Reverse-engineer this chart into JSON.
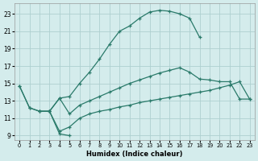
{
  "xlabel": "Humidex (Indice chaleur)",
  "bg_color": "#d4ecec",
  "grid_color": "#aed0d0",
  "line_color": "#2a7a6a",
  "xlim": [
    -0.5,
    23.5
  ],
  "ylim": [
    8.5,
    24.2
  ],
  "xticks": [
    0,
    1,
    2,
    3,
    4,
    5,
    6,
    7,
    8,
    9,
    10,
    11,
    12,
    13,
    14,
    15,
    16,
    17,
    18,
    19,
    20,
    21,
    22,
    23
  ],
  "yticks": [
    9,
    11,
    13,
    15,
    17,
    19,
    21,
    23
  ],
  "line1_x": [
    0,
    1,
    2,
    3,
    4,
    5,
    6,
    7,
    8,
    9,
    10,
    11,
    12,
    13,
    14,
    15,
    16,
    17,
    18
  ],
  "line1_y": [
    14.7,
    12.2,
    11.8,
    11.8,
    13.3,
    13.5,
    15.0,
    16.3,
    17.8,
    19.5,
    21.0,
    21.6,
    22.5,
    23.2,
    23.4,
    23.3,
    23.0,
    22.5,
    20.3
  ],
  "line2_x": [
    3,
    4,
    5
  ],
  "line2_y": [
    11.8,
    9.2,
    9.0
  ],
  "line3_x": [
    0,
    1,
    2,
    3,
    4,
    5,
    6,
    7,
    8,
    9,
    10,
    11,
    12,
    13,
    14,
    15,
    16,
    17,
    18,
    19,
    20,
    21,
    22,
    23
  ],
  "line3_y": [
    14.7,
    12.2,
    11.8,
    11.8,
    13.3,
    11.5,
    12.5,
    13.0,
    13.5,
    14.0,
    14.5,
    15.0,
    15.4,
    15.8,
    16.2,
    16.5,
    16.8,
    16.3,
    15.5,
    15.4,
    15.2,
    15.2,
    13.2,
    13.2
  ],
  "line4_x": [
    2,
    3,
    4,
    5,
    6,
    7,
    8,
    9,
    10,
    11,
    12,
    13,
    14,
    15,
    16,
    17,
    18,
    19,
    20,
    21,
    22,
    23
  ],
  "line4_y": [
    11.8,
    11.8,
    9.5,
    10.0,
    11.0,
    11.5,
    11.8,
    12.0,
    12.3,
    12.5,
    12.8,
    13.0,
    13.2,
    13.4,
    13.6,
    13.8,
    14.0,
    14.2,
    14.5,
    14.8,
    15.2,
    13.2
  ]
}
